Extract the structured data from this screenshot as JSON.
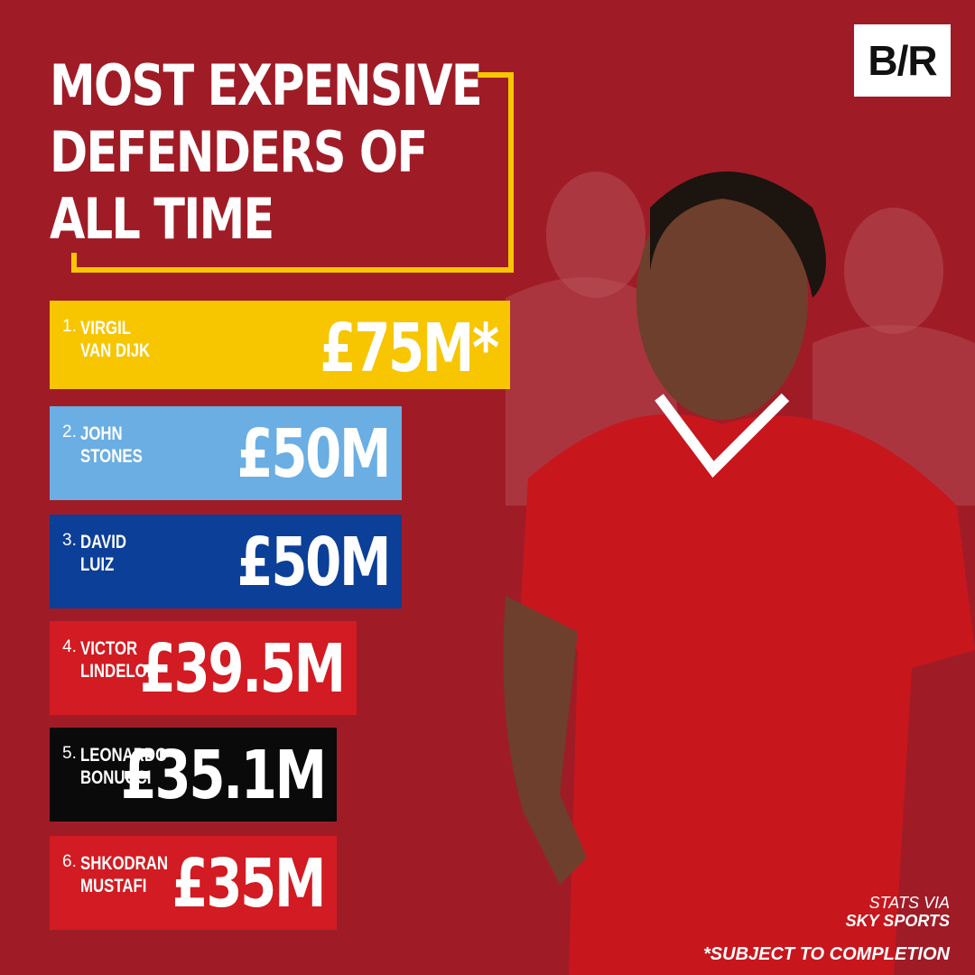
{
  "chart_data": {
    "type": "bar",
    "orientation": "horizontal",
    "title": "MOST EXPENSIVE\nDEFENDERS OF\nALL TIME",
    "logo": "B/R",
    "ranks": [
      "1.",
      "2.",
      "3.",
      "4.",
      "5.",
      "6."
    ],
    "categories": [
      "VIRGIL\nVAN DIJK",
      "JOHN\nSTONES",
      "DAVID\nLUIZ",
      "VICTOR\nLINDELOF",
      "LEONARDO\nBONUCCI",
      "SHKODRAN\nMUSTAFI"
    ],
    "values": [
      75,
      50,
      50,
      39.5,
      35.1,
      35
    ],
    "value_labels": [
      "£75M*",
      "£50M",
      "£50M",
      "£39.5M",
      "£35.1M",
      "£35M"
    ],
    "colors": [
      "#f7c600",
      "#6aaee3",
      "#0b3f98",
      "#d21b22",
      "#0a0a0a",
      "#d21b22"
    ],
    "source": "STATS VIA",
    "source_name": "SKY SPORTS",
    "footnote": "*SUBJECT TO COMPLETION"
  }
}
